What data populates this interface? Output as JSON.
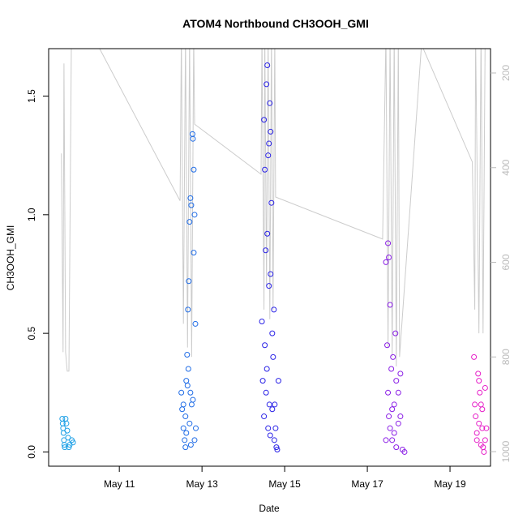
{
  "chart_data": {
    "type": "scatter",
    "title": "ATOM4 Northbound CH3OOH_GMI",
    "x_label": "Date",
    "y_label": "CH3OOH_GMI",
    "xlim": [
      9.29,
      19.98
    ],
    "xticks": [
      {
        "value": 11,
        "label": "May 11"
      },
      {
        "value": 13,
        "label": "May 13"
      },
      {
        "value": 15,
        "label": "May 15"
      },
      {
        "value": 17,
        "label": "May 17"
      },
      {
        "value": 19,
        "label": "May 19"
      }
    ],
    "ylim": [
      -0.06,
      1.7
    ],
    "yticks": [
      {
        "value": 0,
        "label": "0.0"
      },
      0.5,
      {
        "value": 1,
        "label": "1.0"
      },
      1.5
    ],
    "y2lim": [
      1030.8,
      148.6
    ],
    "y2ticks": [
      200,
      400,
      600,
      800,
      1000
    ],
    "series": [
      {
        "color": "#cccccc",
        "axis": "y2",
        "kind": "line",
        "x": [
          9.6,
          9.64,
          9.66,
          9.7,
          9.74,
          9.78,
          9.84,
          10.47,
          12.47,
          12.5,
          12.55,
          12.6,
          12.65,
          12.7,
          12.75,
          12.8,
          12.82,
          14.43,
          14.45,
          14.5,
          14.52,
          14.56,
          14.6,
          14.64,
          14.68,
          14.72,
          14.76,
          14.78,
          17.37,
          17.45,
          17.5,
          17.55,
          17.6,
          17.65,
          17.7,
          17.75,
          17.78,
          18.31,
          19.54,
          19.6,
          19.62,
          19.7,
          19.75,
          19.8,
          19.85
        ],
        "values": [
          370,
          790,
          180,
          790,
          830,
          830,
          140,
          140,
          470,
          120,
          730,
          120,
          780,
          120,
          800,
          120,
          308,
          414,
          120,
          700,
          120,
          650,
          120,
          720,
          120,
          700,
          120,
          462,
          551,
          120,
          780,
          120,
          800,
          120,
          820,
          120,
          800,
          140,
          388,
          700,
          120,
          750,
          120,
          750,
          120
        ]
      },
      {
        "color": "#1ea0e6",
        "x": [
          9.62,
          9.63,
          9.64,
          9.65,
          9.66,
          9.67,
          9.68,
          9.7,
          9.72,
          9.74,
          9.76,
          9.78,
          9.8,
          9.85,
          9.88
        ],
        "values": [
          0.14,
          0.12,
          0.1,
          0.08,
          0.05,
          0.03,
          0.02,
          0.14,
          0.12,
          0.09,
          0.06,
          0.02,
          0.03,
          0.05,
          0.04
        ]
      },
      {
        "color": "#1e6be6",
        "x": [
          12.5,
          12.52,
          12.55,
          12.58,
          12.6,
          12.62,
          12.64,
          12.66,
          12.68,
          12.7,
          12.72,
          12.74,
          12.75,
          12.77,
          12.78,
          12.8,
          12.8,
          12.82,
          12.84,
          12.85,
          12.55,
          12.6,
          12.65,
          12.7,
          12.73,
          12.78,
          12.82,
          12.67,
          12.72,
          12.62
        ],
        "values": [
          0.25,
          0.18,
          0.1,
          0.05,
          0.02,
          0.3,
          0.41,
          0.6,
          0.72,
          0.97,
          1.07,
          1.04,
          0.2,
          1.34,
          1.32,
          1.19,
          0.84,
          1.0,
          0.54,
          0.1,
          0.2,
          0.15,
          0.28,
          0.12,
          0.03,
          0.22,
          0.05,
          0.35,
          0.25,
          0.08
        ]
      },
      {
        "color": "#2a22e6",
        "x": [
          14.45,
          14.47,
          14.5,
          14.52,
          14.54,
          14.56,
          14.58,
          14.6,
          14.62,
          14.64,
          14.66,
          14.68,
          14.7,
          14.72,
          14.74,
          14.76,
          14.78,
          14.8,
          14.82,
          14.5,
          14.55,
          14.6,
          14.65,
          14.7,
          14.75,
          14.52,
          14.58,
          14.62,
          14.66,
          14.85,
          14.57,
          14.63
        ],
        "values": [
          0.55,
          0.3,
          1.4,
          1.19,
          0.85,
          1.55,
          1.63,
          1.25,
          0.7,
          1.47,
          1.35,
          1.05,
          0.5,
          0.4,
          0.6,
          0.2,
          0.1,
          0.02,
          0.01,
          0.15,
          0.25,
          0.1,
          0.07,
          0.18,
          0.05,
          0.45,
          0.92,
          1.3,
          0.75,
          0.3,
          0.35,
          0.2
        ]
      },
      {
        "color": "#8a1ee6",
        "x": [
          17.45,
          17.5,
          17.52,
          17.55,
          17.48,
          17.5,
          17.55,
          17.6,
          17.65,
          17.7,
          17.75,
          17.8,
          17.85,
          17.9,
          17.6,
          17.65,
          17.7,
          17.58,
          17.52,
          17.75,
          17.8,
          17.45,
          17.68,
          17.62
        ],
        "values": [
          0.8,
          0.88,
          0.82,
          0.62,
          0.45,
          0.25,
          0.1,
          0.05,
          0.2,
          0.3,
          0.25,
          0.15,
          0.01,
          0.0,
          0.18,
          0.08,
          0.02,
          0.35,
          0.15,
          0.12,
          0.33,
          0.05,
          0.5,
          0.4
        ]
      },
      {
        "color": "#e61ec8",
        "x": [
          19.58,
          19.62,
          19.65,
          19.68,
          19.7,
          19.72,
          19.75,
          19.78,
          19.8,
          19.82,
          19.85,
          19.88,
          19.65,
          19.7,
          19.75,
          19.6,
          19.78,
          19.85
        ],
        "values": [
          0.4,
          0.15,
          0.08,
          0.33,
          0.3,
          0.25,
          0.2,
          0.1,
          0.02,
          0.0,
          0.27,
          0.1,
          0.05,
          0.12,
          0.03,
          0.2,
          0.18,
          0.05
        ]
      }
    ]
  }
}
